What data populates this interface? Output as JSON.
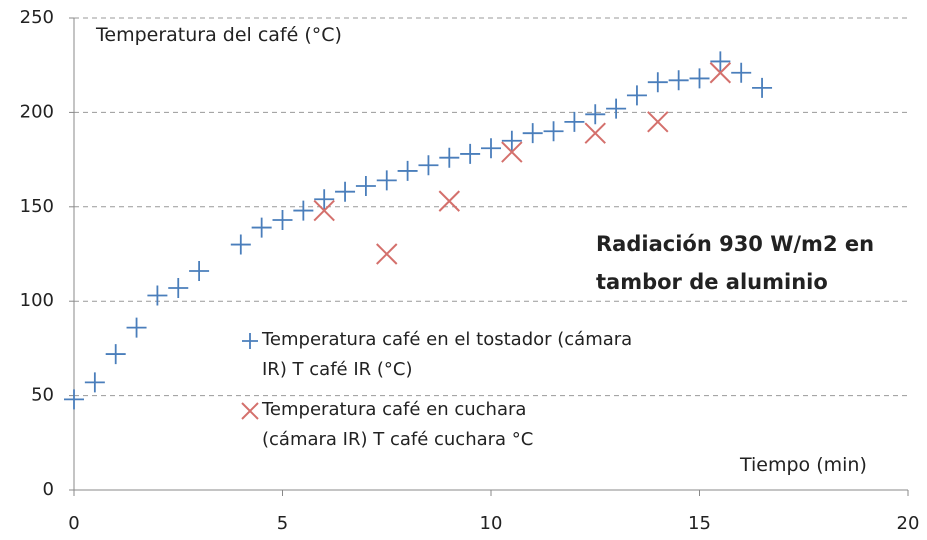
{
  "chart_data": {
    "type": "scatter",
    "y_label": "Temperatura del café (°C)",
    "x_label": "Tiempo (min)",
    "annotation": "Radiación 930 W/m2 en tambor de aluminio",
    "xlim": [
      0,
      20
    ],
    "xticks": [
      0,
      5,
      10,
      15,
      20
    ],
    "ylim": [
      0,
      250
    ],
    "yticks": [
      0,
      50,
      100,
      150,
      200,
      250
    ],
    "grid": true,
    "series": [
      {
        "name": "Temperatura café en el tostador (cámara IR) T café IR (°C)",
        "color": "#4a7ebb",
        "marker": "plus",
        "x": [
          0,
          0.5,
          1,
          1.5,
          2,
          2.5,
          3,
          4,
          4.5,
          5,
          5.5,
          6,
          6.5,
          7,
          7.5,
          8,
          8.5,
          9,
          9.5,
          10,
          10.5,
          11,
          11.5,
          12,
          12.5,
          13,
          13.5,
          14,
          14.5,
          15,
          15.5,
          16,
          16.5
        ],
        "values": [
          48,
          57,
          72,
          86,
          103,
          107,
          116,
          130,
          139,
          143,
          148,
          154,
          158,
          161,
          164,
          169,
          172,
          176,
          178,
          181,
          185,
          189,
          190,
          195,
          199,
          202,
          209,
          216,
          217,
          218,
          227,
          221,
          213
        ]
      },
      {
        "name": "Temperatura café en cuchara (cámara IR) T café cuchara °C",
        "color": "#d4706c",
        "marker": "cross",
        "x": [
          6,
          7.5,
          9,
          10.5,
          12.5,
          14,
          15.5
        ],
        "values": [
          148,
          125,
          153,
          179,
          189,
          195,
          221
        ]
      }
    ]
  }
}
